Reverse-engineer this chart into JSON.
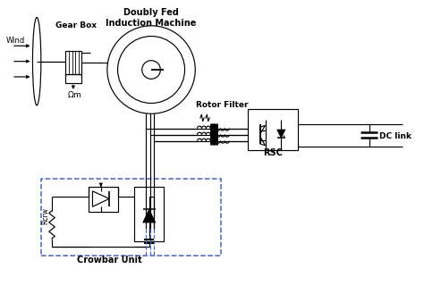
{
  "bg": "#ffffff",
  "lc": "#000000",
  "dc": "#4466bb",
  "figsize": [
    4.74,
    3.2
  ],
  "dpi": 100,
  "xlim": [
    0,
    10
  ],
  "ylim": [
    0,
    6.8
  ]
}
